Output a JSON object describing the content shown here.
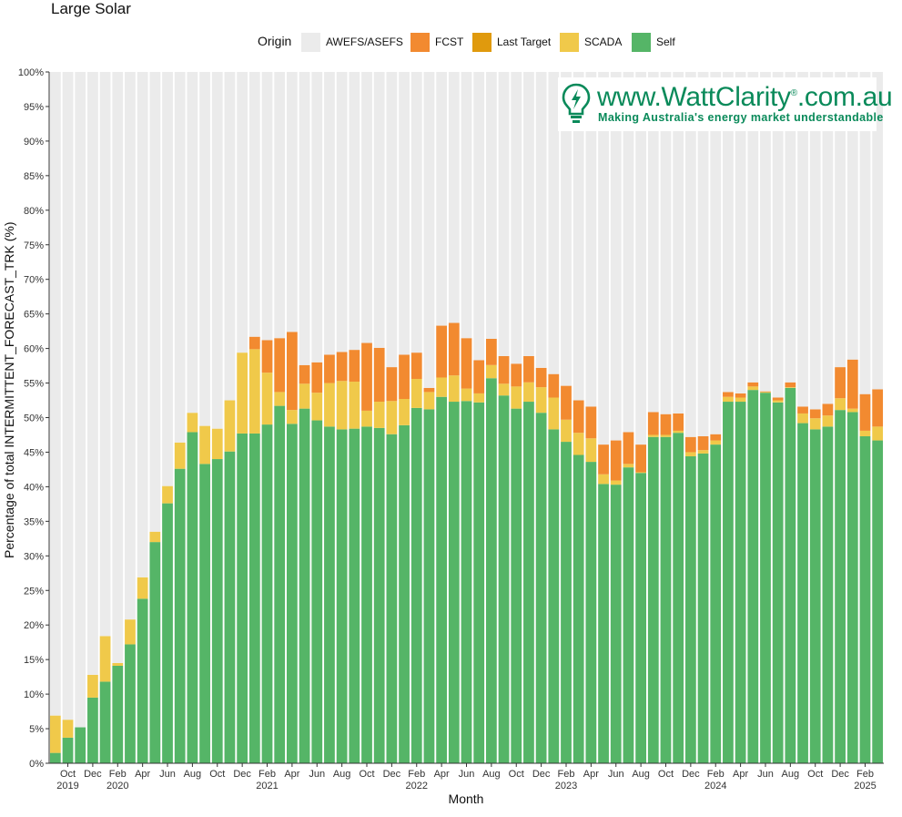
{
  "chart_data": {
    "type": "bar",
    "stacked": true,
    "title": "Large Solar",
    "xlabel": "Month",
    "ylabel": "Percentage of total INTERMITTENT_FORECAST_TRK (%)",
    "ylim": [
      0,
      100
    ],
    "yticks": [
      "0%",
      "5%",
      "10%",
      "15%",
      "20%",
      "25%",
      "30%",
      "35%",
      "40%",
      "45%",
      "50%",
      "55%",
      "60%",
      "65%",
      "70%",
      "75%",
      "80%",
      "85%",
      "90%",
      "95%",
      "100%"
    ],
    "grid": true,
    "legend": {
      "title": "Origin",
      "position": "top",
      "entries": [
        "AWEFS/ASEFS",
        "FCST",
        "Last Target",
        "SCADA",
        "Self"
      ]
    },
    "categories": [
      "Sep 2019",
      "Oct 2019",
      "Nov 2019",
      "Dec 2019",
      "Jan 2020",
      "Feb 2020",
      "Mar 2020",
      "Apr 2020",
      "May 2020",
      "Jun 2020",
      "Jul 2020",
      "Aug 2020",
      "Sep 2020",
      "Oct 2020",
      "Nov 2020",
      "Dec 2020",
      "Jan 2021",
      "Feb 2021",
      "Mar 2021",
      "Apr 2021",
      "May 2021",
      "Jun 2021",
      "Jul 2021",
      "Aug 2021",
      "Sep 2021",
      "Oct 2021",
      "Nov 2021",
      "Dec 2021",
      "Jan 2022",
      "Feb 2022",
      "Mar 2022",
      "Apr 2022",
      "May 2022",
      "Jun 2022",
      "Jul 2022",
      "Aug 2022",
      "Sep 2022",
      "Oct 2022",
      "Nov 2022",
      "Dec 2022",
      "Jan 2023",
      "Feb 2023",
      "Mar 2023",
      "Apr 2023",
      "May 2023",
      "Jun 2023",
      "Jul 2023",
      "Aug 2023",
      "Sep 2023",
      "Oct 2023",
      "Nov 2023",
      "Dec 2023",
      "Jan 2024",
      "Feb 2024",
      "Mar 2024",
      "Apr 2024",
      "May 2024",
      "Jun 2024",
      "Jul 2024",
      "Aug 2024",
      "Sep 2024",
      "Oct 2024",
      "Nov 2024",
      "Dec 2024",
      "Jan 2025",
      "Feb 2025",
      "Mar 2025"
    ],
    "x_tick_labels": [
      {
        "month": "Oct",
        "year": "2019"
      },
      {
        "month": "Dec",
        "year": ""
      },
      {
        "month": "Feb",
        "year": "2020"
      },
      {
        "month": "Apr",
        "year": ""
      },
      {
        "month": "Jun",
        "year": ""
      },
      {
        "month": "Aug",
        "year": ""
      },
      {
        "month": "Oct",
        "year": ""
      },
      {
        "month": "Dec",
        "year": ""
      },
      {
        "month": "Feb",
        "year": "2021"
      },
      {
        "month": "Apr",
        "year": ""
      },
      {
        "month": "Jun",
        "year": ""
      },
      {
        "month": "Aug",
        "year": ""
      },
      {
        "month": "Oct",
        "year": ""
      },
      {
        "month": "Dec",
        "year": ""
      },
      {
        "month": "Feb",
        "year": "2022"
      },
      {
        "month": "Apr",
        "year": ""
      },
      {
        "month": "Jun",
        "year": ""
      },
      {
        "month": "Aug",
        "year": ""
      },
      {
        "month": "Oct",
        "year": ""
      },
      {
        "month": "Dec",
        "year": ""
      },
      {
        "month": "Feb",
        "year": "2023"
      },
      {
        "month": "Apr",
        "year": ""
      },
      {
        "month": "Jun",
        "year": ""
      },
      {
        "month": "Aug",
        "year": ""
      },
      {
        "month": "Oct",
        "year": ""
      },
      {
        "month": "Dec",
        "year": ""
      },
      {
        "month": "Feb",
        "year": "2024"
      },
      {
        "month": "Apr",
        "year": ""
      },
      {
        "month": "Jun",
        "year": ""
      },
      {
        "month": "Aug",
        "year": ""
      },
      {
        "month": "Oct",
        "year": ""
      },
      {
        "month": "Dec",
        "year": ""
      },
      {
        "month": "Feb",
        "year": "2025"
      }
    ],
    "series": [
      {
        "name": "Self",
        "color": "#55b567",
        "values": [
          1.5,
          3.7,
          5.2,
          9.5,
          11.8,
          14.1,
          17.2,
          23.8,
          32.0,
          37.6,
          42.6,
          47.9,
          43.3,
          44.0,
          45.1,
          47.7,
          47.7,
          49.0,
          51.7,
          49.1,
          51.3,
          49.6,
          48.7,
          48.3,
          48.4,
          48.7,
          48.5,
          47.6,
          48.9,
          51.4,
          51.2,
          53.0,
          52.3,
          52.4,
          52.2,
          55.7,
          53.2,
          51.3,
          52.3,
          50.7,
          48.3,
          46.5,
          44.6,
          43.6,
          40.4,
          40.3,
          42.8,
          42.0,
          47.2,
          47.2,
          47.8,
          44.4,
          44.8,
          46.1,
          52.3,
          52.3,
          54.0,
          53.6,
          52.2,
          54.3,
          49.2,
          48.3,
          48.7,
          51.1,
          50.8,
          47.3,
          46.7
        ]
      },
      {
        "name": "SCADA",
        "color": "#f0c94a",
        "values": [
          5.4,
          2.6,
          0.0,
          3.3,
          6.6,
          0.4,
          3.6,
          3.1,
          1.5,
          2.5,
          3.8,
          2.8,
          5.5,
          4.4,
          7.4,
          11.7,
          12.2,
          7.5,
          2.0,
          2.0,
          3.6,
          4.0,
          6.3,
          7.0,
          6.8,
          2.3,
          3.8,
          4.8,
          3.8,
          4.2,
          2.5,
          2.8,
          3.8,
          1.8,
          1.3,
          1.9,
          1.7,
          3.2,
          2.8,
          3.7,
          4.6,
          3.2,
          3.2,
          3.4,
          1.4,
          0.6,
          0.5,
          0.1,
          0.3,
          0.3,
          0.3,
          0.6,
          0.5,
          0.6,
          0.7,
          0.6,
          0.5,
          0.1,
          0.3,
          0.1,
          1.4,
          1.6,
          1.6,
          1.7,
          0.5,
          0.8,
          2.0
        ]
      },
      {
        "name": "Last Target",
        "color": "#e09a0d",
        "values": [
          0,
          0,
          0,
          0,
          0,
          0,
          0,
          0,
          0,
          0,
          0,
          0,
          0,
          0,
          0,
          0,
          0,
          0,
          0,
          0,
          0,
          0,
          0,
          0,
          0,
          0,
          0,
          0,
          0,
          0,
          0,
          0,
          0,
          0,
          0,
          0,
          0,
          0,
          0,
          0,
          0,
          0,
          0,
          0,
          0,
          0,
          0,
          0,
          0,
          0,
          0,
          0,
          0,
          0,
          0,
          0,
          0,
          0,
          0,
          0,
          0,
          0,
          0,
          0,
          0,
          0,
          0
        ]
      },
      {
        "name": "FCST",
        "color": "#f28a30",
        "values": [
          0,
          0,
          0,
          0,
          0,
          0,
          0,
          0,
          0,
          0,
          0,
          0,
          0,
          0,
          0,
          0,
          1.8,
          4.7,
          7.8,
          11.3,
          2.7,
          4.4,
          4.1,
          4.2,
          4.6,
          9.8,
          7.8,
          4.9,
          6.4,
          3.8,
          0.6,
          7.5,
          7.6,
          7.3,
          4.8,
          3.8,
          4.0,
          3.3,
          3.8,
          2.8,
          3.4,
          4.9,
          4.7,
          4.6,
          4.3,
          5.8,
          4.6,
          4.0,
          3.3,
          3.0,
          2.5,
          2.2,
          2.0,
          0.9,
          0.7,
          0.6,
          0.6,
          0.1,
          0.4,
          0.7,
          1.0,
          1.3,
          1.7,
          4.5,
          7.1,
          5.3,
          5.4
        ]
      },
      {
        "name": "AWEFS/ASEFS",
        "color": "#ebebeb",
        "values": [
          93.1,
          93.7,
          94.8,
          87.2,
          81.6,
          85.5,
          79.2,
          73.1,
          66.5,
          59.9,
          53.6,
          49.3,
          51.2,
          51.6,
          47.5,
          40.6,
          38.3,
          38.8,
          38.5,
          37.6,
          42.4,
          42.0,
          40.9,
          40.5,
          40.2,
          39.2,
          39.9,
          42.7,
          40.9,
          40.6,
          45.7,
          36.7,
          36.3,
          38.5,
          41.7,
          38.6,
          41.1,
          42.2,
          41.1,
          42.8,
          43.7,
          45.4,
          47.5,
          48.4,
          53.9,
          53.3,
          52.1,
          53.9,
          49.2,
          49.5,
          49.4,
          52.8,
          52.7,
          52.4,
          46.3,
          46.5,
          44.9,
          46.2,
          47.1,
          44.9,
          48.4,
          48.8,
          48.0,
          42.7,
          41.6,
          46.6,
          45.9
        ]
      }
    ]
  },
  "watermark": {
    "site": "www.WattClarity",
    "registered": "®",
    "domain_suffix": ".com.au",
    "tagline": "Making Australia's energy market understandable",
    "color": "#0a8a5a"
  }
}
